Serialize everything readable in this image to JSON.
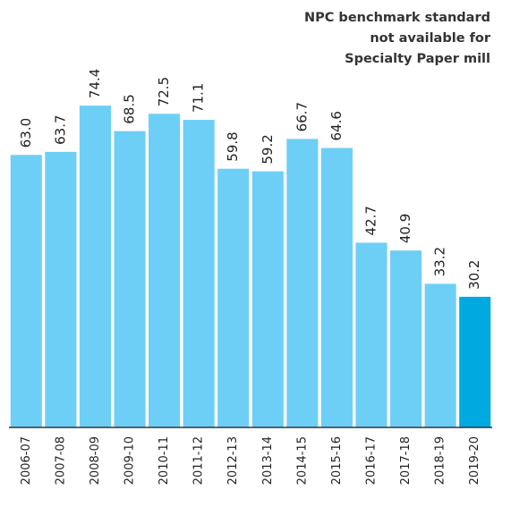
{
  "chart_data": {
    "type": "bar",
    "annotation": [
      "NPC benchmark standard",
      "not available for",
      "Specialty Paper mill"
    ],
    "categories": [
      "2006-07",
      "2007-08",
      "2008-09",
      "2009-10",
      "2010-11",
      "2011-12",
      "2012-13",
      "2013-14",
      "2014-15",
      "2015-16",
      "2016-17",
      "2017-18",
      "2018-19",
      "2019-20"
    ],
    "values": [
      63.0,
      63.7,
      74.4,
      68.5,
      72.5,
      71.1,
      59.8,
      59.2,
      66.7,
      64.6,
      42.7,
      40.9,
      33.2,
      30.2
    ],
    "value_labels": [
      "63.0",
      "63.7",
      "74.4",
      "68.5",
      "72.5",
      "71.1",
      "59.8",
      "59.2",
      "66.7",
      "64.6",
      "42.7",
      "40.9",
      "33.2",
      "30.2"
    ],
    "colors": [
      "#6dcff6",
      "#6dcff6",
      "#6dcff6",
      "#6dcff6",
      "#6dcff6",
      "#6dcff6",
      "#6dcff6",
      "#6dcff6",
      "#6dcff6",
      "#6dcff6",
      "#6dcff6",
      "#6dcff6",
      "#6dcff6",
      "#00a9e0"
    ],
    "ylim": [
      0,
      80
    ]
  }
}
